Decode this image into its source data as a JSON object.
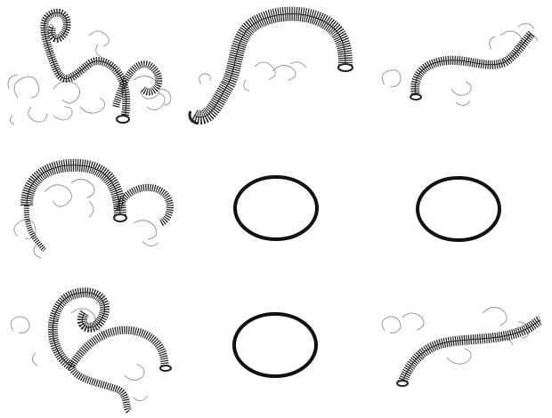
{
  "grid": {
    "rows": 3,
    "columns": 3,
    "cells": [
      {
        "kind": "tube",
        "description": "tangled-spring-tube"
      },
      {
        "kind": "tube",
        "description": "arched-spring-tube"
      },
      {
        "kind": "tube",
        "description": "small-arched-spring-tube"
      },
      {
        "kind": "tube",
        "description": "double-arched-spring-tube"
      },
      {
        "kind": "ellipse",
        "description": "plain-ellipse"
      },
      {
        "kind": "ellipse",
        "description": "plain-ellipse"
      },
      {
        "kind": "tube",
        "description": "twisted-spring-tube"
      },
      {
        "kind": "ellipse",
        "description": "plain-ellipse"
      },
      {
        "kind": "tube",
        "description": "low-arched-spring-tube"
      }
    ]
  },
  "colors": {
    "background": "#ffffff",
    "tube_stroke": "#222222",
    "tendril_stroke": "#9a9a9a",
    "ellipse_stroke": "#111111"
  }
}
